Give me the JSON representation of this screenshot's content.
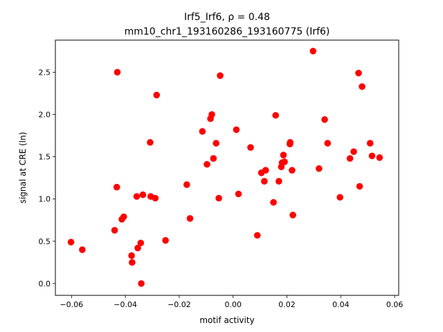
{
  "chart_data": {
    "type": "scatter",
    "title_line1": "Irf5_Irf6, ρ = 0.48",
    "title_line2": "mm10_chr1_193160286_193160775 (Irf6)",
    "xlabel": "motif activity",
    "ylabel": "signal at CRE (ln)",
    "xlim": [
      -0.066,
      0.0615
    ],
    "ylim": [
      -0.14,
      2.88
    ],
    "xticks": [
      -0.06,
      -0.04,
      -0.02,
      0.0,
      0.02,
      0.04,
      0.06
    ],
    "xtick_labels": [
      "−0.06",
      "−0.04",
      "−0.02",
      "0.00",
      "0.02",
      "0.04",
      "0.06"
    ],
    "yticks": [
      0.0,
      0.5,
      1.0,
      1.5,
      2.0,
      2.5
    ],
    "ytick_labels": [
      "0.0",
      "0.5",
      "1.0",
      "1.5",
      "2.0",
      "2.5"
    ],
    "grid": false,
    "point_color": "#ff0000",
    "series": [
      {
        "x": [
          -0.0602,
          -0.056,
          -0.044,
          -0.0432,
          -0.043,
          -0.0413,
          -0.0406,
          -0.0377,
          -0.0375,
          -0.0358,
          -0.0354,
          -0.0343,
          -0.0341,
          -0.0335,
          -0.0308,
          -0.0306,
          -0.0289,
          -0.0284,
          -0.0251,
          -0.0172,
          -0.016,
          -0.0114,
          -0.0097,
          -0.0084,
          -0.0079,
          -0.0073,
          -0.0063,
          -0.0053,
          -0.0048,
          0.0012,
          0.002,
          0.0065,
          0.009,
          0.0105,
          0.0116,
          0.0121,
          0.015,
          0.0158,
          0.017,
          0.0179,
          0.0182,
          0.0187,
          0.0191,
          0.0211,
          0.0212,
          0.0219,
          0.0222,
          0.0297,
          0.0319,
          0.034,
          0.0351,
          0.0397,
          0.0434,
          0.0448,
          0.0466,
          0.047,
          0.0479,
          0.0509,
          0.0516,
          0.0544
        ],
        "y": [
          0.49,
          0.4,
          0.63,
          1.14,
          2.5,
          0.76,
          0.79,
          0.33,
          0.25,
          1.03,
          0.42,
          0.48,
          0.0,
          1.05,
          1.67,
          1.03,
          1.01,
          2.23,
          0.51,
          1.17,
          0.77,
          1.8,
          1.41,
          1.95,
          2.0,
          1.48,
          1.66,
          1.01,
          2.46,
          1.82,
          1.06,
          1.61,
          0.57,
          1.31,
          1.21,
          1.34,
          0.96,
          1.99,
          1.21,
          1.38,
          1.43,
          1.52,
          1.44,
          1.65,
          1.67,
          1.34,
          0.81,
          2.75,
          1.36,
          1.94,
          1.66,
          1.02,
          1.48,
          1.56,
          2.49,
          1.15,
          2.33,
          1.66,
          1.51,
          1.49
        ]
      }
    ]
  }
}
